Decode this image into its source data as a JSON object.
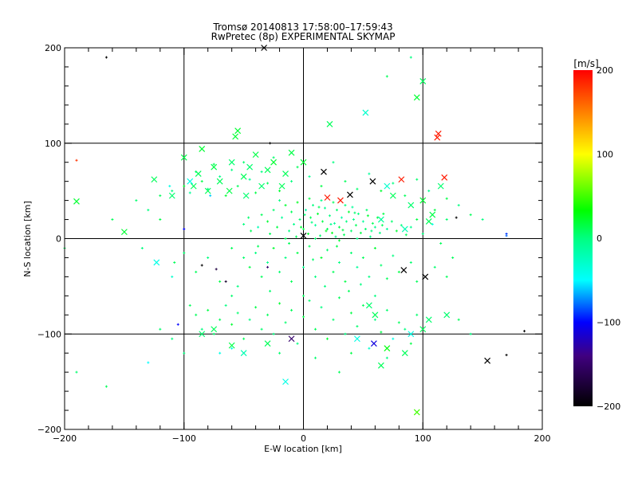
{
  "chart_data": {
    "type": "scatter",
    "title": "Tromsø 20140813 17:58:00–17:59:43",
    "subtitle": "RwPretec (8p) EXPERIMENTAL SKYMAP",
    "xlabel": "E-W location [km]",
    "ylabel": "N-S location [km]",
    "xlim": [
      -200,
      200
    ],
    "ylim": [
      -200,
      200
    ],
    "xticks": [
      -200,
      -100,
      0,
      100,
      200
    ],
    "yticks": [
      -200,
      -100,
      0,
      100,
      200
    ],
    "xtick_labels": [
      "−200",
      "−100",
      "0",
      "100",
      "200"
    ],
    "ytick_labels": [
      "−200",
      "−100",
      "0",
      "100",
      "200"
    ],
    "grid_lines": [
      -100,
      0,
      100
    ],
    "colorbar": {
      "label": "[m/s]",
      "range": [
        -200,
        200
      ],
      "ticks": [
        200,
        100,
        0,
        -100,
        -200
      ],
      "tick_labels": [
        "200",
        "100",
        "0",
        "−100",
        "−200"
      ],
      "stops": [
        {
          "v": 200,
          "color": "#ff0000"
        },
        {
          "v": 150,
          "color": "#ff8000"
        },
        {
          "v": 100,
          "color": "#ffff00"
        },
        {
          "v": 33,
          "color": "#00ff00"
        },
        {
          "v": 0,
          "color": "#00ff80"
        },
        {
          "v": -50,
          "color": "#00ffff"
        },
        {
          "v": -100,
          "color": "#0000ff"
        },
        {
          "v": -140,
          "color": "#400080"
        },
        {
          "v": -200,
          "color": "#000000"
        }
      ]
    },
    "crosses": [
      [
        113,
        110,
        190
      ],
      [
        112,
        106,
        190
      ],
      [
        118,
        64,
        190
      ],
      [
        82,
        62,
        190
      ],
      [
        20,
        43,
        190
      ],
      [
        31,
        40,
        190
      ],
      [
        -33,
        200,
        -200
      ],
      [
        17,
        70,
        -200
      ],
      [
        58,
        60,
        -200
      ],
      [
        39,
        46,
        -200
      ],
      [
        84,
        -33,
        -200
      ],
      [
        102,
        -40,
        -200
      ],
      [
        0,
        3,
        -200
      ],
      [
        154,
        -128,
        -200
      ],
      [
        -55,
        113,
        20
      ],
      [
        -57,
        107,
        20
      ],
      [
        22,
        120,
        10
      ],
      [
        52,
        132,
        -30
      ],
      [
        100,
        165,
        10
      ],
      [
        95,
        148,
        20
      ],
      [
        -125,
        62,
        10
      ],
      [
        -190,
        39,
        20
      ],
      [
        -150,
        7,
        20
      ],
      [
        -100,
        85,
        15
      ],
      [
        -85,
        94,
        20
      ],
      [
        -60,
        80,
        5
      ],
      [
        -70,
        60,
        10
      ],
      [
        -75,
        75,
        15
      ],
      [
        -88,
        68,
        10
      ],
      [
        -92,
        55,
        10
      ],
      [
        -95,
        60,
        -40
      ],
      [
        -50,
        65,
        10
      ],
      [
        -45,
        75,
        5
      ],
      [
        -40,
        88,
        15
      ],
      [
        -30,
        72,
        10
      ],
      [
        -25,
        80,
        20
      ],
      [
        -35,
        55,
        5
      ],
      [
        -15,
        68,
        10
      ],
      [
        -10,
        90,
        15
      ],
      [
        0,
        80,
        20
      ],
      [
        -18,
        55,
        10
      ],
      [
        -48,
        45,
        5
      ],
      [
        -62,
        50,
        15
      ],
      [
        -80,
        50,
        10
      ],
      [
        -110,
        45,
        5
      ],
      [
        70,
        55,
        -30
      ],
      [
        75,
        45,
        10
      ],
      [
        90,
        35,
        5
      ],
      [
        100,
        40,
        20
      ],
      [
        108,
        25,
        15
      ],
      [
        115,
        55,
        5
      ],
      [
        105,
        18,
        10
      ],
      [
        65,
        20,
        -10
      ],
      [
        85,
        10,
        -20
      ],
      [
        -75,
        -95,
        10
      ],
      [
        -85,
        -100,
        5
      ],
      [
        -60,
        -112,
        15
      ],
      [
        -30,
        -110,
        10
      ],
      [
        -15,
        -150,
        -40
      ],
      [
        65,
        -133,
        10
      ],
      [
        95,
        -182,
        50
      ],
      [
        70,
        -115,
        30
      ],
      [
        85,
        -120,
        10
      ],
      [
        90,
        -100,
        -40
      ],
      [
        100,
        -95,
        10
      ],
      [
        105,
        -85,
        5
      ],
      [
        60,
        -80,
        10
      ],
      [
        55,
        -70,
        5
      ],
      [
        45,
        -105,
        -40
      ],
      [
        -10,
        -105,
        -150
      ],
      [
        59,
        -110,
        -110
      ],
      [
        -50,
        -120,
        -20
      ],
      [
        120,
        -80,
        5
      ],
      [
        -123,
        -25,
        -40
      ]
    ],
    "dots": [
      [
        -35,
        25,
        10
      ],
      [
        -30,
        18,
        20
      ],
      [
        -25,
        30,
        5
      ],
      [
        -22,
        12,
        15
      ],
      [
        -18,
        22,
        -10
      ],
      [
        -15,
        35,
        20
      ],
      [
        -12,
        8,
        0
      ],
      [
        -10,
        28,
        10
      ],
      [
        -8,
        15,
        -5
      ],
      [
        -5,
        38,
        25
      ],
      [
        -3,
        20,
        5
      ],
      [
        0,
        10,
        15
      ],
      [
        2,
        30,
        -15
      ],
      [
        4,
        5,
        20
      ],
      [
        6,
        22,
        10
      ],
      [
        8,
        35,
        0
      ],
      [
        10,
        14,
        -10
      ],
      [
        12,
        26,
        20
      ],
      [
        14,
        3,
        5
      ],
      [
        16,
        18,
        15
      ],
      [
        18,
        32,
        -5
      ],
      [
        20,
        10,
        10
      ],
      [
        22,
        24,
        0
      ],
      [
        24,
        6,
        25
      ],
      [
        26,
        16,
        -10
      ],
      [
        28,
        30,
        5
      ],
      [
        30,
        12,
        15
      ],
      [
        32,
        22,
        -15
      ],
      [
        34,
        4,
        10
      ],
      [
        36,
        18,
        0
      ],
      [
        38,
        28,
        20
      ],
      [
        40,
        8,
        5
      ],
      [
        42,
        20,
        -5
      ],
      [
        44,
        14,
        10
      ],
      [
        46,
        26,
        0
      ],
      [
        48,
        6,
        15
      ],
      [
        50,
        18,
        -10
      ],
      [
        52,
        10,
        5
      ],
      [
        54,
        24,
        20
      ],
      [
        56,
        2,
        0
      ],
      [
        58,
        16,
        10
      ],
      [
        60,
        12,
        -5
      ],
      [
        62,
        22,
        15
      ],
      [
        64,
        6,
        0
      ],
      [
        66,
        14,
        10
      ],
      [
        70,
        10,
        -10
      ],
      [
        74,
        18,
        5
      ],
      [
        78,
        8,
        20
      ],
      [
        82,
        14,
        0
      ],
      [
        86,
        4,
        10
      ],
      [
        90,
        12,
        -5
      ],
      [
        95,
        20,
        15
      ],
      [
        -28,
        5,
        10
      ],
      [
        -20,
        40,
        0
      ],
      [
        5,
        42,
        15
      ],
      [
        15,
        40,
        -5
      ],
      [
        25,
        38,
        10
      ],
      [
        35,
        35,
        0
      ],
      [
        -38,
        12,
        -20
      ],
      [
        -6,
        2,
        10
      ],
      [
        10,
        0,
        5
      ],
      [
        30,
        -2,
        20
      ],
      [
        45,
        0,
        0
      ],
      [
        -15,
        0,
        10
      ],
      [
        1,
        25,
        5
      ],
      [
        19,
        8,
        25
      ],
      [
        27,
        2,
        0
      ],
      [
        41,
        33,
        -10
      ],
      [
        53,
        30,
        5
      ],
      [
        67,
        26,
        15
      ],
      [
        -2,
        12,
        20
      ],
      [
        7,
        17,
        0
      ],
      [
        13,
        33,
        10
      ],
      [
        23,
        15,
        -5
      ],
      [
        33,
        9,
        15
      ],
      [
        43,
        27,
        5
      ],
      [
        57,
        8,
        0
      ],
      [
        -44,
        8,
        10
      ],
      [
        -50,
        15,
        0
      ],
      [
        -46,
        22,
        5
      ],
      [
        -120,
        45,
        10
      ],
      [
        -110,
        50,
        0
      ],
      [
        -100,
        55,
        20
      ],
      [
        -95,
        48,
        -10
      ],
      [
        -90,
        70,
        5
      ],
      [
        -85,
        60,
        15
      ],
      [
        -80,
        52,
        0
      ],
      [
        -75,
        78,
        10
      ],
      [
        -70,
        65,
        -5
      ],
      [
        -65,
        45,
        20
      ],
      [
        -60,
        72,
        0
      ],
      [
        -55,
        55,
        10
      ],
      [
        -50,
        80,
        5
      ],
      [
        -45,
        62,
        -10
      ],
      [
        -40,
        48,
        15
      ],
      [
        -35,
        70,
        0
      ],
      [
        -30,
        58,
        10
      ],
      [
        -25,
        85,
        5
      ],
      [
        -20,
        50,
        20
      ],
      [
        -10,
        60,
        0
      ],
      [
        -5,
        75,
        10
      ],
      [
        5,
        65,
        -5
      ],
      [
        15,
        55,
        15
      ],
      [
        25,
        80,
        0
      ],
      [
        35,
        60,
        10
      ],
      [
        45,
        52,
        5
      ],
      [
        55,
        68,
        -10
      ],
      [
        65,
        50,
        20
      ],
      [
        75,
        58,
        0
      ],
      [
        85,
        45,
        10
      ],
      [
        95,
        62,
        5
      ],
      [
        105,
        50,
        -5
      ],
      [
        120,
        42,
        15
      ],
      [
        130,
        35,
        0
      ],
      [
        140,
        25,
        10
      ],
      [
        -140,
        40,
        5
      ],
      [
        -160,
        20,
        10
      ],
      [
        -130,
        30,
        0
      ],
      [
        -112,
        55,
        -40
      ],
      [
        -78,
        45,
        -60
      ],
      [
        110,
        30,
        15
      ],
      [
        120,
        20,
        5
      ],
      [
        115,
        -5,
        10
      ],
      [
        100,
        5,
        0
      ],
      [
        108,
        15,
        -40
      ],
      [
        150,
        20,
        0
      ],
      [
        170,
        5,
        -90
      ],
      [
        125,
        -20,
        10
      ],
      [
        -60,
        -10,
        10
      ],
      [
        -50,
        -20,
        5
      ],
      [
        -45,
        -30,
        15
      ],
      [
        -40,
        -15,
        0
      ],
      [
        -35,
        -40,
        10
      ],
      [
        -30,
        -25,
        -5
      ],
      [
        -25,
        -10,
        20
      ],
      [
        -20,
        -35,
        5
      ],
      [
        -15,
        -20,
        0
      ],
      [
        -10,
        -45,
        10
      ],
      [
        -5,
        -15,
        15
      ],
      [
        0,
        -30,
        -5
      ],
      [
        5,
        -8,
        10
      ],
      [
        10,
        -40,
        0
      ],
      [
        15,
        -20,
        20
      ],
      [
        20,
        -12,
        5
      ],
      [
        25,
        -35,
        10
      ],
      [
        30,
        -25,
        0
      ],
      [
        35,
        -45,
        15
      ],
      [
        40,
        -15,
        5
      ],
      [
        45,
        -30,
        -10
      ],
      [
        50,
        -20,
        10
      ],
      [
        55,
        -40,
        0
      ],
      [
        60,
        -10,
        20
      ],
      [
        65,
        -28,
        5
      ],
      [
        70,
        -42,
        10
      ],
      [
        75,
        -18,
        0
      ],
      [
        80,
        -35,
        15
      ],
      [
        90,
        -25,
        5
      ],
      [
        95,
        -45,
        10
      ],
      [
        -80,
        -20,
        0
      ],
      [
        -90,
        -35,
        10
      ],
      [
        -100,
        -15,
        5
      ],
      [
        -110,
        -40,
        -30
      ],
      [
        -70,
        -45,
        15
      ],
      [
        -55,
        -50,
        0
      ],
      [
        120,
        -40,
        10
      ],
      [
        110,
        -30,
        5
      ],
      [
        -12,
        -5,
        10
      ],
      [
        8,
        -22,
        5
      ],
      [
        18,
        -50,
        0
      ],
      [
        28,
        -8,
        15
      ],
      [
        38,
        -55,
        10
      ],
      [
        48,
        -48,
        0
      ],
      [
        -28,
        -55,
        5
      ],
      [
        -38,
        -8,
        10
      ],
      [
        -90,
        -80,
        10
      ],
      [
        -85,
        -95,
        0
      ],
      [
        -80,
        -75,
        15
      ],
      [
        -75,
        -100,
        5
      ],
      [
        -70,
        -85,
        10
      ],
      [
        -65,
        -70,
        0
      ],
      [
        -60,
        -90,
        20
      ],
      [
        -55,
        -78,
        5
      ],
      [
        -50,
        -105,
        10
      ],
      [
        -45,
        -85,
        0
      ],
      [
        -40,
        -72,
        15
      ],
      [
        -35,
        -95,
        5
      ],
      [
        -30,
        -80,
        10
      ],
      [
        -25,
        -100,
        0
      ],
      [
        -20,
        -68,
        20
      ],
      [
        -15,
        -88,
        5
      ],
      [
        -10,
        -75,
        10
      ],
      [
        -5,
        -110,
        0
      ],
      [
        0,
        -82,
        15
      ],
      [
        5,
        -65,
        5
      ],
      [
        10,
        -95,
        10
      ],
      [
        15,
        -72,
        0
      ],
      [
        20,
        -105,
        20
      ],
      [
        25,
        -85,
        5
      ],
      [
        30,
        -62,
        10
      ],
      [
        35,
        -100,
        0
      ],
      [
        40,
        -78,
        15
      ],
      [
        45,
        -92,
        5
      ],
      [
        50,
        -70,
        10
      ],
      [
        55,
        -115,
        -30
      ],
      [
        60,
        -85,
        0
      ],
      [
        65,
        -98,
        15
      ],
      [
        70,
        -75,
        5
      ],
      [
        75,
        -105,
        -40
      ],
      [
        80,
        -88,
        10
      ],
      [
        85,
        -95,
        0
      ],
      [
        90,
        -110,
        15
      ],
      [
        95,
        -80,
        5
      ],
      [
        -95,
        -70,
        10
      ],
      [
        -100,
        -120,
        0
      ],
      [
        -120,
        -95,
        5
      ],
      [
        -130,
        -130,
        -50
      ],
      [
        -165,
        -155,
        10
      ],
      [
        -190,
        -140,
        5
      ],
      [
        -105,
        -90,
        -100
      ],
      [
        130,
        -85,
        10
      ],
      [
        140,
        -100,
        0
      ],
      [
        -60,
        -60,
        5
      ],
      [
        0,
        -60,
        10
      ],
      [
        60,
        -60,
        0
      ],
      [
        10,
        -125,
        5
      ],
      [
        30,
        -140,
        10
      ],
      [
        70,
        -125,
        0
      ],
      [
        40,
        -120,
        15
      ],
      [
        -20,
        -120,
        5
      ],
      [
        -60,
        -115,
        -40
      ],
      [
        -165,
        190,
        -200
      ],
      [
        -190,
        82,
        180
      ],
      [
        -200,
        -10,
        10
      ],
      [
        185,
        -97,
        -200
      ],
      [
        170,
        -122,
        -200
      ],
      [
        128,
        22,
        -200
      ],
      [
        90,
        190,
        0
      ],
      [
        70,
        170,
        10
      ],
      [
        -28,
        100,
        -200
      ],
      [
        170,
        3,
        -80
      ],
      [
        -135,
        -10,
        0
      ],
      [
        -108,
        -25,
        10
      ],
      [
        -85,
        -28,
        -200
      ],
      [
        -73,
        -32,
        -170
      ],
      [
        -110,
        -105,
        0
      ],
      [
        -70,
        -120,
        -40
      ],
      [
        -120,
        20,
        15
      ],
      [
        -100,
        10,
        -100
      ],
      [
        -65,
        -45,
        -180
      ],
      [
        -30,
        -30,
        -150
      ]
    ]
  }
}
